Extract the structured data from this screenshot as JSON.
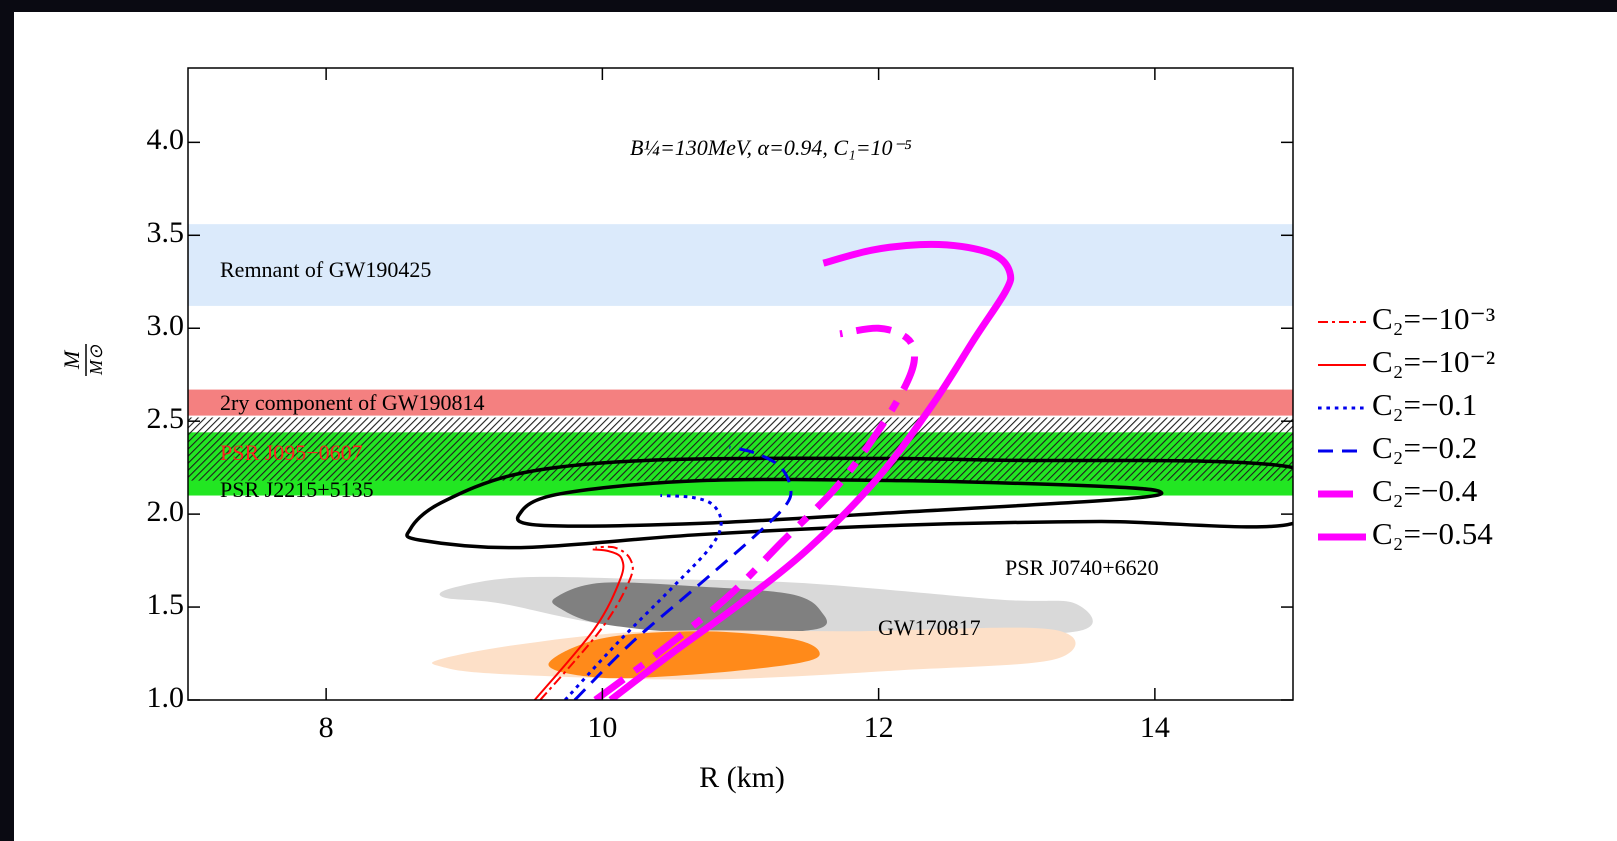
{
  "chart_data": {
    "type": "line",
    "annotation": "B¼=130MeV, α=0.94, C₁=10⁻⁵",
    "x_label": "R (km)",
    "y_label": {
      "numerator": "M",
      "denominator": "M⊙"
    },
    "xlim": [
      7,
      15
    ],
    "ylim": [
      1.0,
      4.4
    ],
    "xticks": [
      8,
      10,
      12,
      14
    ],
    "yticks": [
      {
        "value": 1,
        "label": "1.0"
      },
      1.5,
      {
        "value": 2,
        "label": "2.0"
      },
      2.5,
      {
        "value": 3,
        "label": "3.0"
      },
      3.5,
      {
        "value": 4,
        "label": "4.0"
      }
    ],
    "bands": [
      {
        "name": "Remnant of GW190425",
        "color": "#dbeafb",
        "label_color": "#000000",
        "range": [
          3.12,
          3.56
        ]
      },
      {
        "name": "PSR J2215+5135",
        "color": "#22e622",
        "label_color": "#000000",
        "range": [
          2.1,
          2.44
        ]
      },
      {
        "name": "PSR J095−0607",
        "color": "hatch",
        "label_color": "#ff2020",
        "range": [
          2.18,
          2.52
        ]
      },
      {
        "name": "2ry component of GW190814",
        "color": "#f48080",
        "label_color": "#000000",
        "range": [
          2.53,
          2.67
        ]
      }
    ],
    "regions": [
      {
        "name": "PSR J0740+6620",
        "style": "outline",
        "contours": [
          {
            "color": "#000000",
            "x": [
              8.61,
              8.83,
              9.41,
              10.35,
              11.8,
              12.89,
              15,
              15,
              13.6,
              12.16,
              10.71,
              9.41,
              8.68
            ],
            "y": [
              1.92,
              2.06,
              2.22,
              2.29,
              2.3,
              2.29,
              2.25,
              1.95,
              1.96,
              1.94,
              1.89,
              1.82,
              1.86
            ]
          },
          {
            "color": "#000000",
            "x": [
              9.41,
              9.7,
              10.71,
              12.16,
              13.6,
              14.04,
              13.75,
              12.16,
              10.71,
              9.55
            ],
            "y": [
              2.01,
              2.11,
              2.18,
              2.18,
              2.15,
              2.12,
              2.08,
              2.01,
              1.95,
              1.94
            ]
          }
        ]
      },
      {
        "name": "GW170817",
        "style": "fill",
        "contours": [
          {
            "color": "#d9d9d9",
            "x": [
              8.9,
              9.41,
              10.35,
              11.43,
              12.88,
              13.42,
              13.44,
              12.16,
              10.71,
              9.99,
              9.26,
              8.86
            ],
            "y": [
              1.6,
              1.66,
              1.65,
              1.63,
              1.54,
              1.52,
              1.37,
              1.35,
              1.38,
              1.41,
              1.52,
              1.55
            ]
          },
          {
            "color": "#808080",
            "x": [
              9.66,
              9.99,
              10.71,
              11.36,
              11.58,
              11.54,
              10.71,
              9.99,
              9.7
            ],
            "y": [
              1.55,
              1.63,
              1.61,
              1.57,
              1.48,
              1.38,
              1.36,
              1.41,
              1.49
            ]
          },
          {
            "color": "#fde0c8",
            "x": [
              8.83,
              9.41,
              10.35,
              11.8,
              13.25,
              13.28,
              12.16,
              10.71,
              9.26,
              8.83
            ],
            "y": [
              1.22,
              1.3,
              1.37,
              1.37,
              1.38,
              1.22,
              1.16,
              1.11,
              1.14,
              1.18
            ]
          },
          {
            "color": "#ff8a1a",
            "x": [
              9.61,
              9.99,
              10.71,
              11.36,
              11.57,
              11.43,
              10.71,
              9.99
            ],
            "y": [
              1.19,
              1.33,
              1.37,
              1.33,
              1.26,
              1.2,
              1.14,
              1.12
            ]
          }
        ]
      }
    ],
    "series": [
      {
        "name": "C₂=−10⁻³",
        "color": "#ff0000",
        "style": "dashdot",
        "width": 2,
        "x": [
          9.55,
          9.99,
          10.2,
          10.2,
          10.09,
          9.95
        ],
        "y": [
          1.0,
          1.38,
          1.65,
          1.76,
          1.82,
          1.82
        ]
      },
      {
        "name": "C₂=−10⁻²",
        "color": "#ff0000",
        "style": "solid",
        "width": 2,
        "x": [
          9.51,
          9.94,
          10.13,
          10.14,
          10.05,
          9.93
        ],
        "y": [
          1.0,
          1.38,
          1.65,
          1.76,
          1.8,
          1.81
        ]
      },
      {
        "name": "C₂=−0.1",
        "color": "#0000ee",
        "style": "dotted",
        "width": 3,
        "x": [
          9.73,
          10.1,
          10.5,
          10.78,
          10.86,
          10.8,
          10.65,
          10.42
        ],
        "y": [
          1.0,
          1.3,
          1.6,
          1.82,
          1.95,
          2.05,
          2.09,
          2.1
        ]
      },
      {
        "name": "C₂=−0.2",
        "color": "#0000ee",
        "style": "dashed",
        "width": 3,
        "x": [
          9.8,
          10.2,
          10.7,
          11.1,
          11.33,
          11.36,
          11.28,
          11.1,
          10.92
        ],
        "y": [
          1.0,
          1.3,
          1.62,
          1.88,
          2.05,
          2.15,
          2.26,
          2.33,
          2.36
        ]
      },
      {
        "name": "C₂=−0.4",
        "color": "#ff00ff",
        "style": "dashdot",
        "width": 7,
        "x": [
          9.95,
          10.4,
          10.9,
          11.3,
          11.7,
          12.0,
          12.2,
          12.26,
          12.2,
          12.0,
          11.72
        ],
        "y": [
          1.0,
          1.25,
          1.55,
          1.85,
          2.15,
          2.45,
          2.7,
          2.85,
          2.95,
          3.0,
          2.97
        ]
      },
      {
        "name": "C₂=−0.54",
        "color": "#ff00ff",
        "style": "solid",
        "width": 7,
        "x": [
          10.06,
          10.5,
          11.0,
          11.5,
          12.0,
          12.4,
          12.7,
          12.92,
          12.95,
          12.85,
          12.6,
          12.3,
          11.95,
          11.6
        ],
        "y": [
          1.0,
          1.25,
          1.52,
          1.82,
          2.2,
          2.6,
          2.95,
          3.2,
          3.3,
          3.39,
          3.44,
          3.45,
          3.42,
          3.35
        ]
      }
    ]
  }
}
